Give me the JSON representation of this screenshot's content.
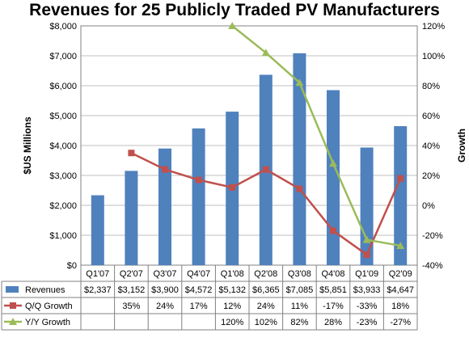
{
  "chart_data": {
    "type": "bar",
    "title": "Revenues for 25 Publicly Traded PV Manufacturers",
    "ylabel": "$US Millions",
    "y2label": "Growth",
    "ylim": [
      0,
      8000
    ],
    "y2lim": [
      -40,
      120
    ],
    "yticks": [
      "$0",
      "$1,000",
      "$2,000",
      "$3,000",
      "$4,000",
      "$5,000",
      "$6,000",
      "$7,000",
      "$8,000"
    ],
    "y2ticks": [
      "-40%",
      "-20%",
      "0%",
      "20%",
      "40%",
      "60%",
      "80%",
      "100%",
      "120%"
    ],
    "categories": [
      "Q1'07",
      "Q2'07",
      "Q3'07",
      "Q4'07",
      "Q1'08",
      "Q2'08",
      "Q3'08",
      "Q4'08",
      "Q1'09",
      "Q2'09"
    ],
    "grid": true,
    "legend": "table-bottom",
    "series": [
      {
        "name": "Revenues",
        "type": "bar",
        "axis": "left",
        "color": "#4f81bd",
        "values": [
          2337,
          3152,
          3900,
          4572,
          5132,
          6365,
          7085,
          5851,
          3933,
          4647
        ],
        "labels": [
          "$2,337",
          "$3,152",
          "$3,900",
          "$4,572",
          "$5,132",
          "$6,365",
          "$7,085",
          "$5,851",
          "$3,933",
          "$4,647"
        ]
      },
      {
        "name": "Q/Q Growth",
        "type": "line",
        "axis": "right",
        "color": "#c0504d",
        "marker": "square",
        "values": [
          null,
          35,
          24,
          17,
          12,
          24,
          11,
          -17,
          -33,
          18
        ],
        "labels": [
          "",
          "35%",
          "24%",
          "17%",
          "12%",
          "24%",
          "11%",
          "-17%",
          "-33%",
          "18%"
        ]
      },
      {
        "name": "Y/Y Growth",
        "type": "line",
        "axis": "right",
        "color": "#9bbb59",
        "marker": "triangle",
        "values": [
          null,
          null,
          null,
          null,
          120,
          102,
          82,
          28,
          -23,
          -27
        ],
        "labels": [
          "",
          "",
          "",
          "",
          "120%",
          "102%",
          "82%",
          "28%",
          "-23%",
          "-27%"
        ]
      }
    ]
  }
}
